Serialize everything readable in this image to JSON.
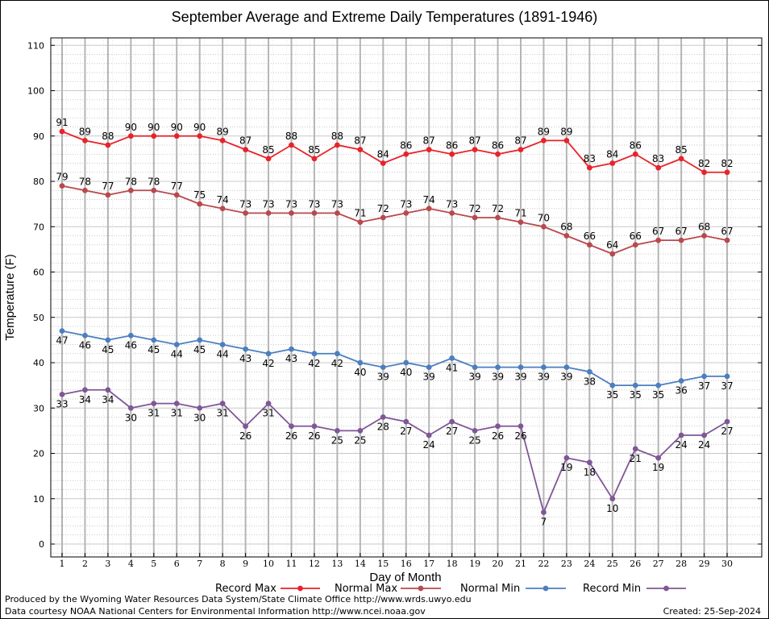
{
  "chart_data": {
    "type": "line",
    "title": "September Average and Extreme Daily Temperatures (1891-1946)",
    "xlabel": "Day of Month",
    "ylabel": "Temperature (F)",
    "ylim": [
      -5,
      110
    ],
    "yticks": [
      0,
      10,
      20,
      30,
      40,
      50,
      60,
      70,
      80,
      90,
      100,
      110
    ],
    "x": [
      1,
      2,
      3,
      4,
      5,
      6,
      7,
      8,
      9,
      10,
      11,
      12,
      13,
      14,
      15,
      16,
      17,
      18,
      19,
      20,
      21,
      22,
      23,
      24,
      25,
      26,
      27,
      28,
      29,
      30
    ],
    "grid": true,
    "legend_position": "bottom",
    "series": [
      {
        "name": "Record Max",
        "color": "#e8232a",
        "label_position": "above",
        "values": [
          91,
          89,
          88,
          90,
          90,
          90,
          90,
          89,
          87,
          85,
          88,
          85,
          88,
          87,
          84,
          86,
          87,
          86,
          87,
          86,
          87,
          89,
          89,
          83,
          84,
          86,
          83,
          85,
          82,
          82
        ]
      },
      {
        "name": "Normal Max",
        "color": "#b8494d",
        "label_position": "above",
        "values": [
          79,
          78,
          77,
          78,
          78,
          77,
          75,
          74,
          73,
          73,
          73,
          73,
          73,
          71,
          72,
          73,
          74,
          73,
          72,
          72,
          71,
          70,
          68,
          66,
          64,
          66,
          67,
          67,
          68,
          67
        ]
      },
      {
        "name": "Normal Min",
        "color": "#4b7fbf",
        "label_position": "below",
        "values": [
          47,
          46,
          45,
          46,
          45,
          44,
          45,
          44,
          43,
          42,
          43,
          42,
          42,
          40,
          39,
          40,
          39,
          41,
          39,
          39,
          39,
          39,
          39,
          38,
          35,
          35,
          35,
          36,
          37,
          37
        ]
      },
      {
        "name": "Record Min",
        "color": "#7f5796",
        "label_position": "below",
        "values": [
          33,
          34,
          34,
          30,
          31,
          31,
          30,
          31,
          26,
          31,
          26,
          26,
          25,
          25,
          28,
          27,
          24,
          27,
          25,
          26,
          26,
          7,
          19,
          18,
          10,
          21,
          19,
          24,
          24,
          27
        ]
      }
    ]
  },
  "footer": {
    "produced_by": "Produced by the Wyoming Water Resources Data System/State Climate Office http://www.wrds.uwyo.edu",
    "courtesy": "Data courtesy NOAA National Centers for Environmental Information http://www.ncei.noaa.gov",
    "created": "Created:  25-Sep-2024"
  }
}
